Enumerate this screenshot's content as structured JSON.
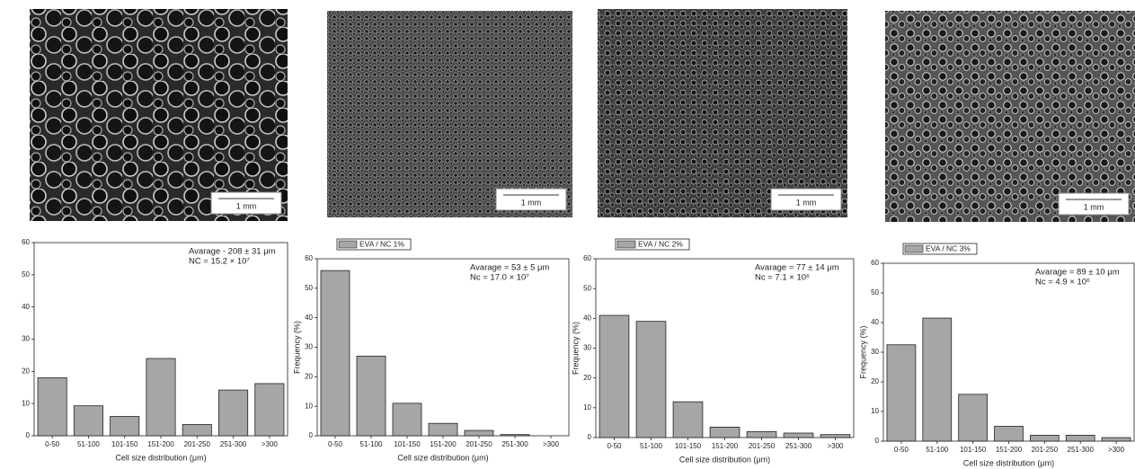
{
  "images": [
    {
      "scale_bar": "1 mm"
    },
    {
      "scale_bar": "1 mm"
    },
    {
      "scale_bar": "1 mm"
    },
    {
      "scale_bar": "1 mm"
    }
  ],
  "chart_data": [
    {
      "type": "bar",
      "x_label": "Cell size distribution (μm)",
      "annotations": [
        "Avarage - 208 ± 31 μm",
        "NC = 15.2 × 10⁷"
      ],
      "categories": [
        "0-50",
        "51-100",
        "101-150",
        "151-200",
        "201-250",
        "251-300",
        ">300"
      ],
      "series": [
        {
          "color": "#a6a6a6",
          "values": [
            18,
            9.3,
            6,
            24,
            3.5,
            14.2,
            16.2
          ]
        }
      ],
      "ylim": [
        0,
        60
      ],
      "yticks": [
        0,
        10,
        20,
        30,
        40,
        50,
        60
      ],
      "grid": false
    },
    {
      "type": "bar",
      "x_label": "Cell size distribution (μm)",
      "y_label": "Frequency (%)",
      "annotations": [
        "Avarage = 53 ± 5 μm",
        "Nc = 17.0 × 10⁷"
      ],
      "categories": [
        "0-50",
        "51-100",
        "101-150",
        "151-200",
        "201-250",
        "251-300",
        ">300"
      ],
      "series": [
        {
          "name": "EVA / NC 1%",
          "color": "#a6a6a6",
          "values": [
            56,
            27,
            11,
            4.2,
            1.8,
            0.4,
            0
          ]
        }
      ],
      "ylim": [
        0,
        60
      ],
      "yticks": [
        0,
        10,
        20,
        30,
        40,
        50,
        60
      ],
      "grid": false,
      "legend": "top-left"
    },
    {
      "type": "bar",
      "x_label": "Cell size distribution (μm)",
      "y_label": "Frequency (%)",
      "annotations": [
        "Avarage = 77 ± 14 μm",
        "Nc = 7.1 × 10⁶"
      ],
      "categories": [
        "0-50",
        "51-100",
        "101-150",
        "151-200",
        "201-250",
        "251-300",
        ">300"
      ],
      "series": [
        {
          "name": "EVA / NC 2%",
          "color": "#a6a6a6",
          "values": [
            41,
            39,
            12,
            3.5,
            2,
            1.5,
            1
          ]
        }
      ],
      "ylim": [
        0,
        60
      ],
      "yticks": [
        0,
        10,
        20,
        30,
        40,
        50,
        60
      ],
      "grid": false,
      "legend": "top-left"
    },
    {
      "type": "bar",
      "x_label": "Cell size distribution (μm)",
      "y_label": "Frequency (%)",
      "annotations": [
        "Avarage = 89 ± 10 μm",
        "Nc = 4.9 × 10⁶"
      ],
      "categories": [
        "0-50",
        "51-100",
        "101-150",
        "151-200",
        "201-250",
        "251-300",
        ">300"
      ],
      "series": [
        {
          "name": "EVA / NC 3%",
          "color": "#a6a6a6",
          "values": [
            32.5,
            41.5,
            15.8,
            5,
            2,
            2,
            1.2
          ]
        }
      ],
      "ylim": [
        0,
        60
      ],
      "yticks": [
        0,
        10,
        20,
        30,
        40,
        50,
        60
      ],
      "grid": false,
      "legend": "top-left"
    }
  ]
}
